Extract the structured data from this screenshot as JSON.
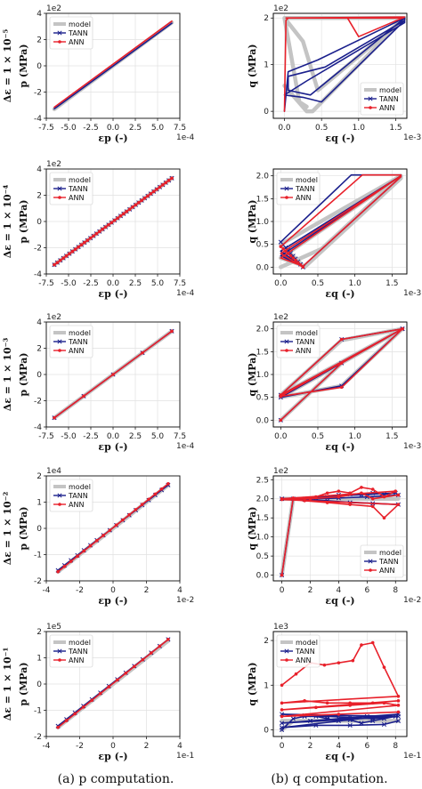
{
  "colors": {
    "model": "#c4c4c4",
    "tann": "#1a1f8c",
    "ann": "#e8202a",
    "grid": "#e1e1e1"
  },
  "captions": {
    "a": "(a) p computation.",
    "b": "(b) q computation."
  },
  "rows": [
    {
      "de": "Δε = 1 × 10⁻⁵"
    },
    {
      "de": "Δε = 1 × 10⁻⁴"
    },
    {
      "de": "Δε = 1 × 10⁻³"
    },
    {
      "de": "Δε = 1 × 10⁻²"
    },
    {
      "de": "Δε = 1 × 10⁻¹"
    }
  ],
  "chart_data": [
    {
      "id": "a1",
      "type": "line",
      "ylabel": "p (MPa)",
      "xlabel": "εp (-)",
      "xmult": "1e-4",
      "ymult": "1e2",
      "xlim": [
        -7.5,
        7.5
      ],
      "ylim": [
        -4,
        4
      ],
      "xticks": [
        "-7.5",
        "-5.0",
        "-2.5",
        "0.0",
        "2.5",
        "5.0",
        "7.5"
      ],
      "xtickvals": [
        -7.5,
        -5,
        -2.5,
        0,
        2.5,
        5,
        7.5
      ],
      "yticks": [
        "-4",
        "-2",
        "0",
        "2",
        "4"
      ],
      "ytickvals": [
        -4,
        -2,
        0,
        2,
        4
      ],
      "legend": "upper-left",
      "markers": false,
      "series": [
        {
          "name": "model",
          "x": [
            -6.6,
            6.6
          ],
          "y": [
            -3.3,
            3.3
          ]
        },
        {
          "name": "TANN",
          "x": [
            -6.6,
            6.6
          ],
          "y": [
            -3.28,
            3.25
          ]
        },
        {
          "name": "ANN",
          "x": [
            -6.6,
            6.6
          ],
          "y": [
            -3.15,
            3.4
          ]
        }
      ]
    },
    {
      "id": "b1",
      "type": "line",
      "ylabel": "q (MPa)",
      "xlabel": "εq (-)",
      "xmult": "1e-3",
      "ymult": "1e2",
      "xlim": [
        -0.15,
        1.65
      ],
      "ylim": [
        -0.15,
        2.1
      ],
      "xticks": [
        "0.0",
        "0.5",
        "1.0",
        "1.5"
      ],
      "xtickvals": [
        0,
        0.5,
        1,
        1.5
      ],
      "yticks": [
        "0",
        "1",
        "2"
      ],
      "ytickvals": [
        0,
        1,
        2
      ],
      "legend": "lower-right",
      "markers": false,
      "series": [
        {
          "name": "model",
          "x": [
            0,
            0.3,
            0.38,
            1.62,
            1.62,
            0,
            0.25,
            0.45,
            1.62,
            1.62,
            0,
            0.2,
            0.3
          ],
          "y": [
            0.55,
            0,
            0,
            2.0,
            2.0,
            2.0,
            1.5,
            0.45,
            2.0,
            2.0,
            2.0,
            0.2,
            0.1
          ]
        },
        {
          "name": "TANN",
          "x": [
            0,
            0.05,
            0.45,
            1.62,
            1.62,
            0.55,
            0.05,
            0.05,
            0.35,
            1.62,
            1.62,
            0.3,
            0,
            0.25,
            0.5,
            1.62
          ],
          "y": [
            0,
            0.85,
            1.1,
            2.0,
            1.95,
            0.95,
            0.75,
            0.45,
            0.35,
            2.0,
            1.9,
            0.65,
            0.35,
            0.3,
            0.2,
            1.95
          ]
        },
        {
          "name": "ANN",
          "x": [
            0,
            0.02,
            0.05,
            0.85,
            1.0,
            1.62,
            0.02,
            1.6
          ],
          "y": [
            0,
            1.95,
            2.0,
            2.0,
            1.6,
            2.02,
            2.0,
            2.0
          ]
        }
      ]
    },
    {
      "id": "a2",
      "type": "line",
      "ylabel": "p (MPa)",
      "xlabel": "εp (-)",
      "xmult": "1e-4",
      "ymult": "1e2",
      "xlim": [
        -7.5,
        7.5
      ],
      "ylim": [
        -4,
        4
      ],
      "xticks": [
        "-7.5",
        "-5.0",
        "-2.5",
        "0.0",
        "2.5",
        "5.0",
        "7.5"
      ],
      "xtickvals": [
        -7.5,
        -5,
        -2.5,
        0,
        2.5,
        5,
        7.5
      ],
      "yticks": [
        "-4",
        "-2",
        "0",
        "2",
        "4"
      ],
      "ytickvals": [
        -4,
        -2,
        0,
        2,
        4
      ],
      "legend": "upper-left",
      "markers": true,
      "markerCount": 40,
      "series": [
        {
          "name": "model",
          "x": [
            -6.6,
            6.6
          ],
          "y": [
            -3.3,
            3.3
          ]
        },
        {
          "name": "TANN",
          "x": [
            -6.6,
            6.6
          ],
          "y": [
            -3.3,
            3.3
          ]
        },
        {
          "name": "ANN",
          "x": [
            -6.6,
            6.6
          ],
          "y": [
            -3.3,
            3.3
          ]
        }
      ]
    },
    {
      "id": "b2",
      "type": "line",
      "ylabel": "q (MPa)",
      "xlabel": "εq (-)",
      "xmult": "1e-3",
      "ymult": "",
      "xlim": [
        -0.1,
        1.7
      ],
      "ylim": [
        -0.15,
        2.15
      ],
      "xticks": [
        "0.0",
        "0.5",
        "1.0",
        "1.5"
      ],
      "xtickvals": [
        0,
        0.5,
        1,
        1.5
      ],
      "yticks": [
        "0.0",
        "0.5",
        "1.0",
        "1.5",
        "2.0"
      ],
      "ytickvals": [
        0,
        0.5,
        1,
        1.5,
        2
      ],
      "legend": "upper-left",
      "markers": true,
      "markerCount": 10,
      "series": [
        {
          "name": "model",
          "x": [
            0,
            0.55,
            1.62,
            1.62,
            0,
            0.32,
            1.62,
            1.62,
            0,
            0.28
          ],
          "y": [
            0,
            0.4,
            2.0,
            2.0,
            0.5,
            0.0,
            1.95,
            2.0,
            0.2,
            0.05
          ]
        },
        {
          "name": "TANN",
          "x": [
            0,
            0.95,
            1.62,
            1.62,
            0,
            0.3,
            1.62,
            1.62,
            0,
            0.3
          ],
          "y": [
            0.55,
            2.02,
            2.02,
            2.0,
            0.25,
            0.02,
            1.98,
            2.0,
            0.35,
            0.0
          ]
        },
        {
          "name": "ANN",
          "x": [
            0,
            1.1,
            1.62,
            1.62,
            0,
            0.3,
            1.62,
            1.62,
            0,
            0.3
          ],
          "y": [
            0.45,
            2.02,
            2.02,
            2.0,
            0.2,
            0.02,
            1.98,
            2.0,
            0.3,
            0.0
          ]
        }
      ]
    },
    {
      "id": "a3",
      "type": "line",
      "ylabel": "p (MPa)",
      "xlabel": "εp (-)",
      "xmult": "1e-4",
      "ymult": "1e2",
      "xlim": [
        -7.5,
        7.5
      ],
      "ylim": [
        -4,
        4
      ],
      "xticks": [
        "-7.5",
        "-5.0",
        "-2.5",
        "0.0",
        "2.5",
        "5.0",
        "7.5"
      ],
      "xtickvals": [
        -7.5,
        -5,
        -2.5,
        0,
        2.5,
        5,
        7.5
      ],
      "yticks": [
        "-4",
        "-2",
        "0",
        "2",
        "4"
      ],
      "ytickvals": [
        -4,
        -2,
        0,
        2,
        4
      ],
      "legend": "upper-left",
      "markers": true,
      "markerCount": 5,
      "series": [
        {
          "name": "model",
          "x": [
            -6.6,
            6.6
          ],
          "y": [
            -3.3,
            3.3
          ]
        },
        {
          "name": "TANN",
          "x": [
            -6.6,
            6.6
          ],
          "y": [
            -3.3,
            3.3
          ]
        },
        {
          "name": "ANN",
          "x": [
            -6.6,
            6.6
          ],
          "y": [
            -3.3,
            3.3
          ]
        }
      ]
    },
    {
      "id": "b3",
      "type": "line",
      "ylabel": "q (MPa)",
      "xlabel": "εq (-)",
      "xmult": "1e-3",
      "ymult": "1e2",
      "xlim": [
        -0.1,
        1.7
      ],
      "ylim": [
        -0.15,
        2.15
      ],
      "xticks": [
        "0.0",
        "0.5",
        "1.0",
        "1.5"
      ],
      "xtickvals": [
        0,
        0.5,
        1,
        1.5
      ],
      "yticks": [
        "0.0",
        "0.5",
        "1.0",
        "1.5",
        "2.0"
      ],
      "ytickvals": [
        0,
        0.5,
        1,
        1.5,
        2
      ],
      "legend": "upper-left",
      "markers": true,
      "markerVertices": true,
      "series": [
        {
          "name": "model",
          "x": [
            0,
            0.82,
            1.64,
            0,
            0.82,
            1.64,
            0,
            0.82,
            1.64
          ],
          "y": [
            0,
            1.25,
            2.0,
            0.55,
            1.75,
            2.0,
            0.5,
            0.75,
            2.0
          ]
        },
        {
          "name": "TANN",
          "x": [
            0,
            0.82,
            1.64,
            0,
            0.82,
            1.64,
            0,
            0.82,
            1.64
          ],
          "y": [
            0,
            1.25,
            2.0,
            0.55,
            1.77,
            2.0,
            0.5,
            0.75,
            2.0
          ]
        },
        {
          "name": "ANN",
          "x": [
            0,
            0.82,
            1.64,
            0,
            0.82,
            1.64,
            0,
            0.82,
            1.64
          ],
          "y": [
            0,
            1.25,
            2.0,
            0.55,
            1.77,
            2.0,
            0.52,
            0.72,
            2.0
          ]
        }
      ]
    },
    {
      "id": "a4",
      "type": "line",
      "ylabel": "p (MPa)",
      "xlabel": "εp (-)",
      "xmult": "1e-2",
      "ymult": "1e4",
      "xlim": [
        -4,
        4
      ],
      "ylim": [
        -2,
        2
      ],
      "xticks": [
        "-4",
        "-2",
        "0",
        "2",
        "4"
      ],
      "xtickvals": [
        -4,
        -2,
        0,
        2,
        4
      ],
      "yticks": [
        "-2",
        "-1",
        "0",
        "1",
        "2"
      ],
      "ytickvals": [
        -2,
        -1,
        0,
        1,
        2
      ],
      "legend": "upper-left",
      "markers": true,
      "markerCount": 18,
      "series": [
        {
          "name": "model",
          "x": [
            -3.3,
            3.3
          ],
          "y": [
            -1.65,
            1.65
          ]
        },
        {
          "name": "TANN",
          "x": [
            -3.3,
            3.3
          ],
          "y": [
            -1.6,
            1.65
          ]
        },
        {
          "name": "ANN",
          "x": [
            -3.3,
            3.3
          ],
          "y": [
            -1.65,
            1.7
          ]
        }
      ]
    },
    {
      "id": "b4",
      "type": "line",
      "ylabel": "q (MPa)",
      "xlabel": "εq (-)",
      "xmult": "1e-2",
      "ymult": "1e2",
      "xlim": [
        -0.6,
        8.8
      ],
      "ylim": [
        -0.15,
        2.6
      ],
      "xticks": [
        "0",
        "2",
        "4",
        "6",
        "8"
      ],
      "xtickvals": [
        0,
        2,
        4,
        6,
        8
      ],
      "yticks": [
        "0.0",
        "0.5",
        "1.0",
        "1.5",
        "2.0",
        "2.5"
      ],
      "ytickvals": [
        0,
        0.5,
        1,
        1.5,
        2,
        2.5
      ],
      "legend": "lower-right",
      "markers": true,
      "markerVertices": true,
      "series": [
        {
          "name": "model",
          "x": [
            0,
            0.8,
            8.2,
            0,
            8.2,
            0,
            8.2
          ],
          "y": [
            0,
            2.0,
            2.0,
            2.0,
            2.0,
            2.0,
            2.0
          ]
        },
        {
          "name": "TANN",
          "x": [
            0,
            0.8,
            1.6,
            2.4,
            3.2,
            4.0,
            4.8,
            5.6,
            6.4,
            7.2,
            8.0,
            0,
            1.6,
            3.2,
            4.8,
            6.4,
            8.2,
            0,
            2.0,
            4.0,
            6.0,
            8.2
          ],
          "y": [
            0,
            2.0,
            2.0,
            2.02,
            2.05,
            2.1,
            2.12,
            2.1,
            2.15,
            2.12,
            2.15,
            2.0,
            1.98,
            1.95,
            1.9,
            1.88,
            1.85,
            2.0,
            2.0,
            2.02,
            2.05,
            2.1
          ]
        },
        {
          "name": "ANN",
          "x": [
            0,
            0.8,
            1.6,
            2.4,
            3.2,
            4.0,
            4.8,
            5.6,
            6.4,
            7.2,
            8.0,
            0,
            1.6,
            3.2,
            4.8,
            6.4,
            7.2,
            8.2,
            0,
            2.0,
            4.0,
            5.6,
            6.4,
            8.2
          ],
          "y": [
            0,
            2.02,
            2.0,
            2.05,
            2.15,
            2.2,
            2.15,
            2.3,
            2.25,
            2.05,
            2.2,
            2.0,
            1.95,
            1.9,
            1.85,
            1.8,
            1.5,
            1.85,
            1.98,
            2.0,
            2.05,
            2.15,
            2.0,
            2.1
          ]
        }
      ]
    },
    {
      "id": "a5",
      "type": "line",
      "ylabel": "p (MPa)",
      "xlabel": "εp (-)",
      "xmult": "1e-1",
      "ymult": "1e5",
      "xlim": [
        -4,
        4
      ],
      "ylim": [
        -2,
        2
      ],
      "xticks": [
        "-4",
        "-2",
        "0",
        "2",
        "4"
      ],
      "xtickvals": [
        -4,
        -2,
        0,
        2,
        4
      ],
      "yticks": [
        "-2",
        "-1",
        "0",
        "1",
        "2"
      ],
      "ytickvals": [
        -2,
        -1,
        0,
        1,
        2
      ],
      "legend": "upper-left",
      "markers": true,
      "markerCount": 14,
      "series": [
        {
          "name": "model",
          "x": [
            -3.3,
            3.3
          ],
          "y": [
            -1.65,
            1.65
          ]
        },
        {
          "name": "TANN",
          "x": [
            -3.3,
            3.3
          ],
          "y": [
            -1.6,
            1.7
          ]
        },
        {
          "name": "ANN",
          "x": [
            -3.3,
            3.3
          ],
          "y": [
            -1.65,
            1.7
          ]
        }
      ]
    },
    {
      "id": "b5",
      "type": "line",
      "ylabel": "q (MPa)",
      "xlabel": "εq (-)",
      "xmult": "1e-1",
      "ymult": "1e3",
      "xlim": [
        -0.6,
        8.8
      ],
      "ylim": [
        -0.15,
        2.2
      ],
      "xticks": [
        "0",
        "2",
        "4",
        "6",
        "8"
      ],
      "xtickvals": [
        0,
        2,
        4,
        6,
        8
      ],
      "yticks": [
        "0",
        "1",
        "2"
      ],
      "ytickvals": [
        0,
        1,
        2
      ],
      "legend": "upper-left",
      "markers": true,
      "markerVertices": true,
      "series": [
        {
          "name": "model",
          "x": [
            0,
            0.8,
            8.2,
            0,
            8.2
          ],
          "y": [
            0,
            0.2,
            0.2,
            0.2,
            0.2
          ]
        },
        {
          "name": "TANN",
          "x": [
            0,
            0.8,
            1.6,
            2.4,
            3.2,
            4.0,
            4.8,
            5.6,
            6.4,
            7.2,
            8.0,
            0,
            1.6,
            3.2,
            4.8,
            6.4,
            8.2,
            0,
            2.0,
            4.0,
            6.0,
            8.2,
            0,
            2.4,
            4.8,
            7.2,
            8.2
          ],
          "y": [
            0,
            0.25,
            0.3,
            0.3,
            0.25,
            0.2,
            0.22,
            0.15,
            0.2,
            0.25,
            0.3,
            0.35,
            0.32,
            0.3,
            0.28,
            0.25,
            0.3,
            0.15,
            0.2,
            0.25,
            0.3,
            0.35,
            0.05,
            0.1,
            0.1,
            0.12,
            0.2
          ]
        },
        {
          "name": "ANN",
          "x": [
            0,
            1.0,
            2.0,
            3.0,
            4.0,
            5.0,
            5.6,
            6.4,
            7.2,
            8.2,
            0,
            1.6,
            3.2,
            4.8,
            6.4,
            8.2,
            0,
            2.4,
            4.8,
            7.2,
            8.2,
            0,
            4.0,
            8.2
          ],
          "y": [
            1.0,
            1.25,
            1.5,
            1.45,
            1.5,
            1.55,
            1.9,
            1.95,
            1.4,
            0.75,
            0.6,
            0.65,
            0.6,
            0.6,
            0.6,
            0.65,
            0.45,
            0.5,
            0.55,
            0.6,
            0.55,
            0.3,
            0.35,
            0.4
          ]
        }
      ]
    }
  ]
}
